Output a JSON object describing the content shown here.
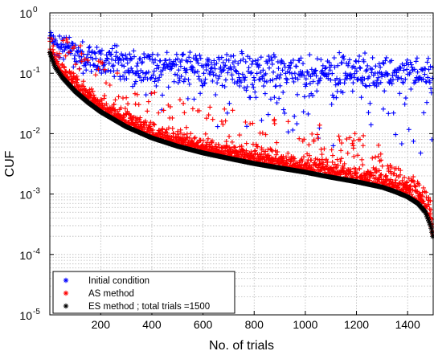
{
  "chart_data": {
    "type": "scatter",
    "title": "",
    "xlabel": "No. of trials",
    "ylabel": "CUF",
    "x_range": [
      1,
      1500
    ],
    "y_range": [
      1e-05,
      1
    ],
    "y_scale": "log",
    "grid": true,
    "x_ticks": [
      200,
      400,
      600,
      800,
      1000,
      1200,
      1400
    ],
    "x_tick_labels": [
      "200",
      "400",
      "600",
      "800",
      "1000",
      "1200",
      "1400"
    ],
    "y_tick_exponents": [
      "0",
      "-1",
      "-2",
      "-3",
      "-4",
      "-5"
    ],
    "y_tick_base": "10",
    "legend_position": "bottom-left",
    "series": [
      {
        "name": "Initial condition",
        "marker": "*",
        "color": "#0000ff",
        "description_points": [
          [
            1,
            0.45
          ],
          [
            100,
            0.3
          ],
          [
            300,
            0.22
          ],
          [
            600,
            0.18
          ],
          [
            900,
            0.17
          ],
          [
            1200,
            0.17
          ],
          [
            1500,
            0.15
          ]
        ],
        "spread_low": [
          [
            1,
            0.3
          ],
          [
            200,
            0.05
          ],
          [
            600,
            0.01
          ],
          [
            1000,
            0.005
          ],
          [
            1500,
            0.004
          ]
        ]
      },
      {
        "name": "AS method",
        "marker": "+",
        "color": "#ff0000"
      },
      {
        "name": "ES method ;  total trials =1500",
        "marker": "*",
        "color": "#000000",
        "points": [
          [
            1,
            0.22
          ],
          [
            20,
            0.13
          ],
          [
            50,
            0.085
          ],
          [
            100,
            0.05
          ],
          [
            150,
            0.033
          ],
          [
            200,
            0.023
          ],
          [
            300,
            0.013
          ],
          [
            400,
            0.0085
          ],
          [
            500,
            0.0062
          ],
          [
            600,
            0.0048
          ],
          [
            700,
            0.0039
          ],
          [
            800,
            0.0032
          ],
          [
            900,
            0.0027
          ],
          [
            1000,
            0.0023
          ],
          [
            1100,
            0.0019
          ],
          [
            1200,
            0.0016
          ],
          [
            1300,
            0.0013
          ],
          [
            1350,
            0.0011
          ],
          [
            1400,
            0.0009
          ],
          [
            1440,
            0.0007
          ],
          [
            1470,
            0.0005
          ],
          [
            1490,
            0.0003
          ],
          [
            1500,
            0.00018
          ]
        ]
      }
    ]
  }
}
